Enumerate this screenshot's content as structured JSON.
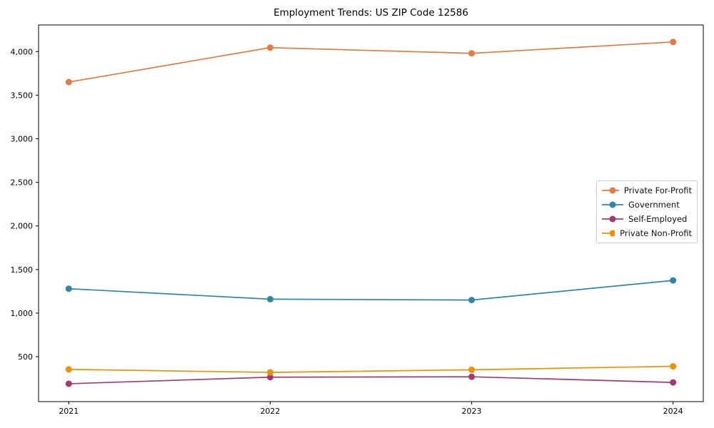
{
  "chart_data": {
    "type": "line",
    "title": "Employment Trends: US ZIP Code 12586",
    "x": [
      "2021",
      "2022",
      "2023",
      "2024"
    ],
    "series": [
      {
        "name": "Private For-Profit",
        "color": "#e7793e",
        "values": [
          3650,
          4045,
          3980,
          4110
        ]
      },
      {
        "name": "Government",
        "color": "#2e86ab",
        "values": [
          1280,
          1160,
          1150,
          1375
        ]
      },
      {
        "name": "Self-Employed",
        "color": "#a23b72",
        "values": [
          190,
          265,
          270,
          205
        ]
      },
      {
        "name": "Private Non-Profit",
        "color": "#f18f01",
        "values": [
          355,
          320,
          350,
          390
        ]
      }
    ],
    "yticks": [
      500,
      1000,
      1500,
      2000,
      2500,
      3000,
      3500,
      4000
    ],
    "ylim": [
      -15,
      4305
    ],
    "xlim": [
      -0.15,
      3.15
    ],
    "xlabel": "",
    "ylabel": "",
    "grid": false,
    "legend_position": "center-right",
    "marker": "circle",
    "axis_color": "#000000",
    "legend_border_color": "#cccccc"
  }
}
